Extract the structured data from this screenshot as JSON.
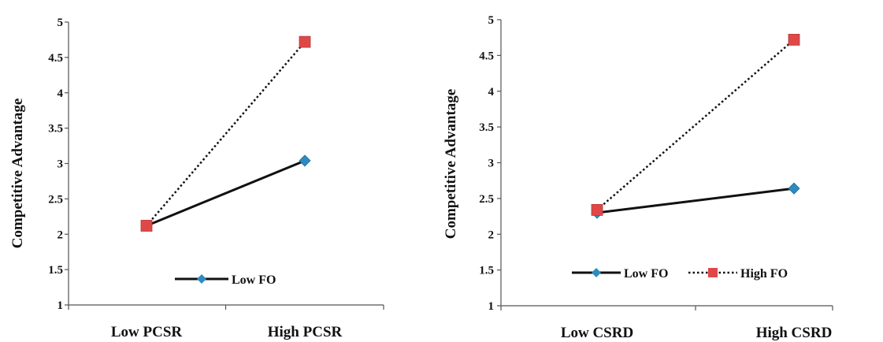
{
  "chart_data": [
    {
      "type": "line",
      "categories": [
        "Low PCSR",
        "High PCSR"
      ],
      "series": [
        {
          "name": "Low FO",
          "values": [
            2.12,
            3.04
          ]
        },
        {
          "name": "",
          "values": [
            2.12,
            4.72
          ]
        }
      ],
      "xlabel": "",
      "ylabel": "Competitive Advantage",
      "ylim": [
        1,
        5
      ],
      "yticks": [
        "1",
        "1.5",
        "2",
        "2.5",
        "3",
        "3.5",
        "4",
        "4.5",
        "5"
      ],
      "legend_entries": [
        "Low FO"
      ],
      "legend_position": "bottom-center",
      "grid": false,
      "colors": {
        "low_fo": "#2E8BC0",
        "high_fo": "#E04848",
        "line": "#111111"
      }
    },
    {
      "type": "line",
      "categories": [
        "Low CSRD",
        "High CSRD"
      ],
      "series": [
        {
          "name": "Low FO",
          "values": [
            2.3,
            2.64
          ]
        },
        {
          "name": "High FO",
          "values": [
            2.34,
            4.72
          ]
        }
      ],
      "xlabel": "",
      "ylabel": "Competitive Advantage",
      "ylim": [
        1,
        5
      ],
      "yticks": [
        "1",
        "1.5",
        "2",
        "2.5",
        "3",
        "3.5",
        "4",
        "4.5",
        "5"
      ],
      "legend_entries": [
        "Low FO",
        "High FO"
      ],
      "legend_position": "bottom-center",
      "grid": false,
      "colors": {
        "low_fo": "#2E8BC0",
        "high_fo": "#E04848",
        "line": "#111111"
      }
    }
  ]
}
